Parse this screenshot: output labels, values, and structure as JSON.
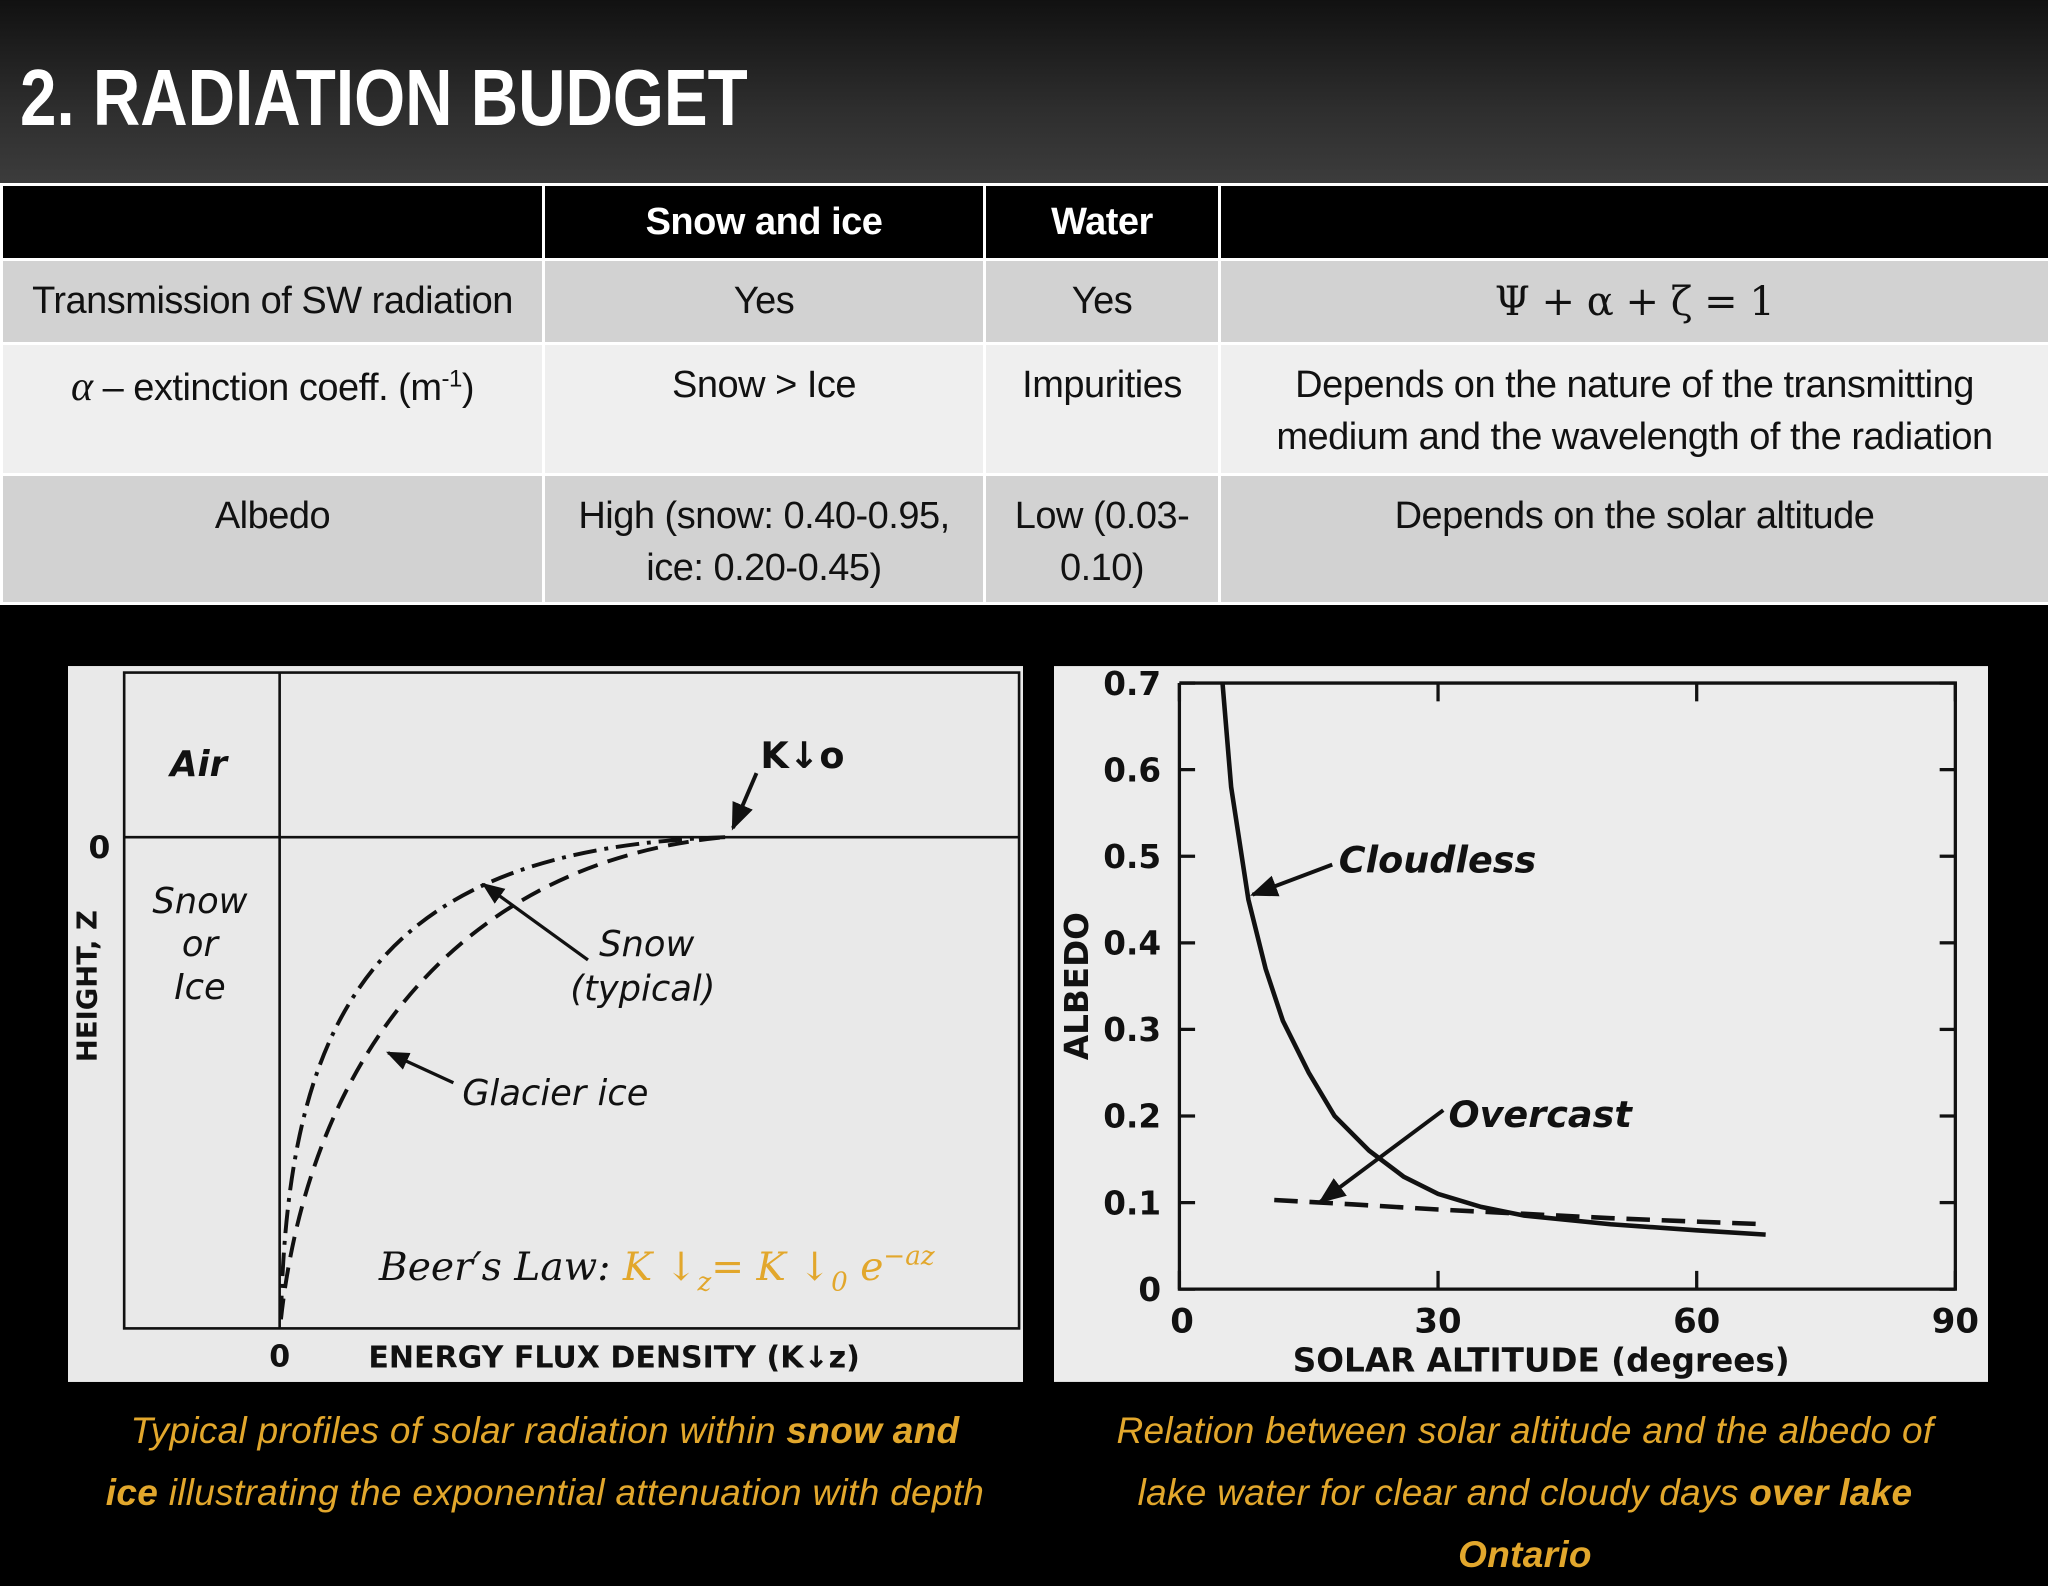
{
  "title": "2. RADIATION BUDGET",
  "table": {
    "header": [
      "Snow and ice",
      "Water"
    ],
    "rows": [
      {
        "label": "Transmission of SW radiation",
        "snow_ice": "Yes",
        "water": "Yes",
        "note": "Ψ + α + ζ = 1"
      },
      {
        "label": {
          "symbol": "α",
          "text": " – extinction coeff. (m",
          "sup": "-1",
          "close": ")"
        },
        "snow_ice": "Snow > Ice",
        "water": "Impurities",
        "note": "Depends on the nature of the transmitting medium and the wavelength of the radiation"
      },
      {
        "label": "Albedo",
        "snow_ice": "High (snow: 0.40-0.95, ice: 0.20-0.45)",
        "water": "Low (0.03-0.10)",
        "note": "Depends on the solar altitude"
      }
    ]
  },
  "left_figure": {
    "air": "Air",
    "height_zero": "0",
    "medium": [
      "Snow",
      "or",
      "Ice"
    ],
    "y_axis_label": "HEIGHT, Z",
    "incoming": "K↓o",
    "snow_label": [
      "Snow",
      "(typical)"
    ],
    "glacier_label": "Glacier ice",
    "flux_zero": "0",
    "x_axis_label": "ENERGY FLUX DENSITY (K↓z)",
    "beers_law": {
      "label": "Beer′s Law:",
      "lhs": "K ↓",
      "lhs_sub": "z",
      "rhs": "= K ↓",
      "rhs_sub": "0",
      "base": " e",
      "exponent": "−az"
    },
    "caption": [
      "Typical profiles of solar radiation within ",
      "snow and ice",
      " illustrating the exponential attenuation with depth"
    ]
  },
  "chart_data": {
    "type": "line",
    "x_axis_label": "SOLAR ALTITUDE (degrees)",
    "y_axis_label": "ALBEDO",
    "xlim": [
      0,
      90
    ],
    "ylim": [
      0,
      0.7
    ],
    "xticks": [
      0,
      30,
      60,
      90
    ],
    "yticks": [
      0,
      0.1,
      0.2,
      0.3,
      0.4,
      0.5,
      0.6,
      0.7
    ],
    "series": [
      {
        "name": "Cloudless",
        "color": "#111111",
        "dash": false,
        "x": [
          5,
          6,
          8,
          10,
          12,
          15,
          18,
          22,
          26,
          30,
          35,
          40,
          50,
          60,
          68
        ],
        "values": [
          0.7,
          0.58,
          0.45,
          0.37,
          0.31,
          0.25,
          0.2,
          0.16,
          0.13,
          0.11,
          0.095,
          0.085,
          0.075,
          0.068,
          0.063
        ]
      },
      {
        "name": "Overcast",
        "color": "#111111",
        "dash": true,
        "x": [
          11,
          20,
          30,
          40,
          50,
          60,
          68
        ],
        "values": [
          0.103,
          0.098,
          0.092,
          0.087,
          0.082,
          0.078,
          0.075
        ]
      }
    ],
    "caption": [
      "Relation between solar altitude and the albedo of lake water for clear and cloudy days ",
      "over lake Ontario"
    ]
  }
}
